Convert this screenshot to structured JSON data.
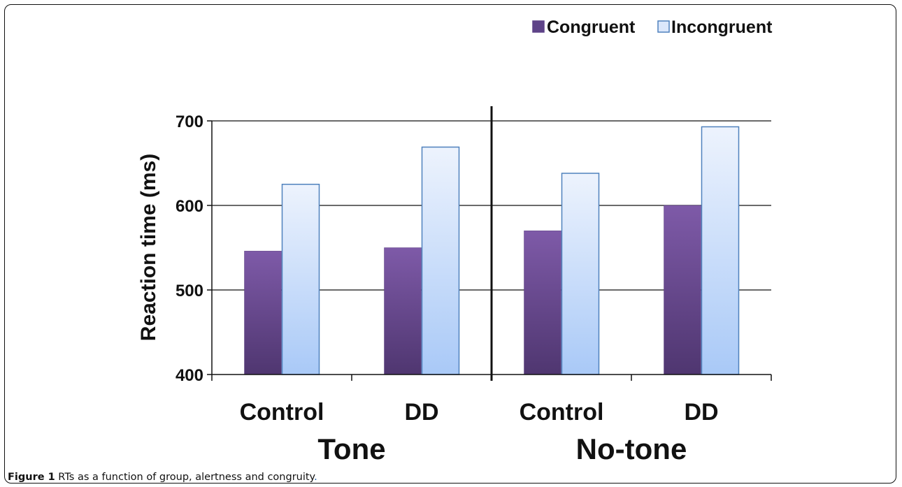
{
  "figure": {
    "caption_label": "Figure 1",
    "caption_text": " RTs as a function of group, alertness and congruity",
    "caption_period": "."
  },
  "chart_data": {
    "type": "bar",
    "ylabel": "Reaction time (ms)",
    "ylim": [
      400,
      700
    ],
    "yticks": [
      400,
      500,
      600,
      700
    ],
    "grid": true,
    "legend_position": "top-right",
    "categories": [
      "Control",
      "DD",
      "Control",
      "DD"
    ],
    "groups": [
      {
        "label": "Tone",
        "categories": [
          "Control",
          "DD"
        ]
      },
      {
        "label": "No-tone",
        "categories": [
          "Control",
          "DD"
        ]
      }
    ],
    "series": [
      {
        "name": "Congruent",
        "values": [
          546,
          550,
          570,
          600
        ],
        "color": "#6a4a93"
      },
      {
        "name": "Incongruent",
        "values": [
          625,
          669,
          638,
          693
        ],
        "color": "#c9dcf7"
      }
    ]
  }
}
